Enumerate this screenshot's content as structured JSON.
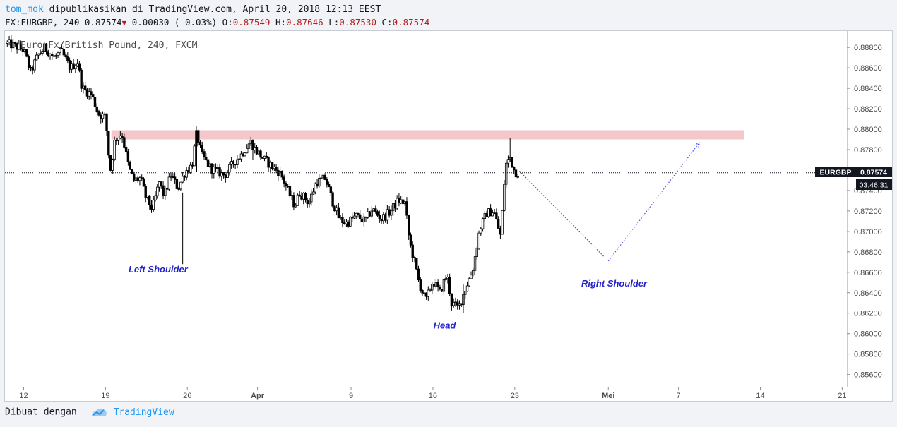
{
  "header": {
    "author": "tom_mok",
    "published_text": "dipublikasikan di TradingView.com, April 20, 2018 12:13 EEST",
    "symbol_line": {
      "symbol": "FX:EURGBP, 240",
      "last": "0.87574",
      "change": "-0.00030 (-0.03%)",
      "open_label": "O:",
      "open": "0.87549",
      "high_label": "H:",
      "high": "0.87646",
      "low_label": "L:",
      "low": "0.87530",
      "close_label": "C:",
      "close": "0.87574"
    }
  },
  "chart_title": "Euro Fx/British Pound, 240, FXCM",
  "price_tag": {
    "symbol": "EURGBP",
    "price": "0.87574",
    "countdown": "03:46:31"
  },
  "footer": {
    "made_with": "Dibuat dengan",
    "brand": "TradingView"
  },
  "colors": {
    "candle": "#000000",
    "resistance_zone": "#f4c7cb",
    "projection_line": "#4a4ae8",
    "annotation_text": "#2323c8",
    "price_tag_bg": "#131722",
    "author_link": "#2196f3",
    "down_color": "#b71c1c"
  },
  "chart_data": {
    "type": "candlestick",
    "title": "Euro Fx/British Pound, 240, FXCM",
    "ylim": [
      0.8548,
      0.8896
    ],
    "y_ticks": [
      "0.88800",
      "0.88600",
      "0.88400",
      "0.88200",
      "0.88000",
      "0.87800",
      "0.87600",
      "0.87400",
      "0.87200",
      "0.87000",
      "0.86800",
      "0.86600",
      "0.86400",
      "0.86200",
      "0.86000",
      "0.85800",
      "0.85600"
    ],
    "x_tick_labels": [
      {
        "label": "12",
        "day": 0
      },
      {
        "label": "19",
        "day": 7
      },
      {
        "label": "26",
        "day": 14
      },
      {
        "label": "Apr",
        "day": 20,
        "bold": true
      },
      {
        "label": "9",
        "day": 28
      },
      {
        "label": "16",
        "day": 35
      },
      {
        "label": "23",
        "day": 42
      },
      {
        "label": "Mei",
        "day": 50,
        "bold": true
      },
      {
        "label": "7",
        "day": 56
      },
      {
        "label": "14",
        "day": 63
      },
      {
        "label": "21",
        "day": 70
      }
    ],
    "x_start_day": -1.6,
    "x_end_day": 70.4,
    "last_price": 0.87574,
    "resistance_zone": {
      "from_day": 7.5,
      "to_day": 61.6,
      "low": 0.879,
      "high": 0.8799
    },
    "projection": [
      {
        "day": 42.4,
        "price": 0.8759
      },
      {
        "day": 50.0,
        "price": 0.8671
      },
      {
        "day": 57.8,
        "price": 0.8787
      }
    ],
    "annotations": [
      {
        "text": "Left Shoulder",
        "day": 11.5,
        "price": 0.866
      },
      {
        "text": "Head",
        "day": 36.0,
        "price": 0.8605
      },
      {
        "text": "Right Shoulder",
        "day": 50.5,
        "price": 0.8646
      }
    ],
    "path_points": [
      [
        -1.4,
        0.8884
      ],
      [
        0.0,
        0.8878
      ],
      [
        0.6,
        0.8856
      ],
      [
        1.2,
        0.8872
      ],
      [
        1.8,
        0.888
      ],
      [
        2.6,
        0.887
      ],
      [
        3.2,
        0.8876
      ],
      [
        4.0,
        0.886
      ],
      [
        4.6,
        0.8866
      ],
      [
        5.0,
        0.884
      ],
      [
        5.8,
        0.8834
      ],
      [
        6.4,
        0.8815
      ],
      [
        7.0,
        0.8812
      ],
      [
        7.4,
        0.8758
      ],
      [
        7.8,
        0.879
      ],
      [
        8.4,
        0.8796
      ],
      [
        9.0,
        0.8762
      ],
      [
        9.4,
        0.875
      ],
      [
        10.0,
        0.8752
      ],
      [
        10.4,
        0.8735
      ],
      [
        11.0,
        0.8722
      ],
      [
        11.6,
        0.8748
      ],
      [
        12.0,
        0.8735
      ],
      [
        12.6,
        0.8755
      ],
      [
        13.2,
        0.8742
      ],
      [
        13.8,
        0.8758
      ],
      [
        14.4,
        0.8765
      ],
      [
        14.8,
        0.8797
      ],
      [
        15.2,
        0.8775
      ],
      [
        16.0,
        0.8762
      ],
      [
        16.6,
        0.8758
      ],
      [
        17.2,
        0.8755
      ],
      [
        18.0,
        0.8768
      ],
      [
        18.6,
        0.8775
      ],
      [
        19.4,
        0.8788
      ],
      [
        19.8,
        0.878
      ],
      [
        20.6,
        0.877
      ],
      [
        21.6,
        0.876
      ],
      [
        22.0,
        0.8756
      ],
      [
        22.6,
        0.874
      ],
      [
        23.2,
        0.8725
      ],
      [
        23.6,
        0.8738
      ],
      [
        24.4,
        0.8728
      ],
      [
        25.0,
        0.8748
      ],
      [
        25.8,
        0.8752
      ],
      [
        26.4,
        0.873
      ],
      [
        27.0,
        0.8712
      ],
      [
        27.6,
        0.8708
      ],
      [
        28.4,
        0.8715
      ],
      [
        29.2,
        0.871
      ],
      [
        29.8,
        0.8722
      ],
      [
        30.6,
        0.8712
      ],
      [
        31.4,
        0.872
      ],
      [
        32.0,
        0.873
      ],
      [
        32.6,
        0.8728
      ],
      [
        33.0,
        0.869
      ],
      [
        33.4,
        0.8672
      ],
      [
        33.8,
        0.865
      ],
      [
        34.4,
        0.8632
      ],
      [
        35.0,
        0.8652
      ],
      [
        35.6,
        0.864
      ],
      [
        36.2,
        0.8658
      ],
      [
        36.6,
        0.863
      ],
      [
        37.2,
        0.8625
      ],
      [
        37.8,
        0.8645
      ],
      [
        38.4,
        0.8662
      ],
      [
        39.0,
        0.8702
      ],
      [
        39.6,
        0.8718
      ],
      [
        40.2,
        0.872
      ],
      [
        40.8,
        0.8695
      ],
      [
        41.2,
        0.8765
      ],
      [
        41.6,
        0.8772
      ],
      [
        42.0,
        0.8758
      ],
      [
        42.4,
        0.8757
      ]
    ],
    "wicks": [
      {
        "day": 13.6,
        "low": 0.8668,
        "high": 0.8738
      },
      {
        "day": 14.8,
        "low": 0.8758,
        "high": 0.8799
      },
      {
        "day": 19.6,
        "low": 0.877,
        "high": 0.879
      },
      {
        "day": 41.6,
        "low": 0.8768,
        "high": 0.8791
      },
      {
        "day": 37.6,
        "low": 0.862,
        "high": 0.8648
      }
    ]
  }
}
